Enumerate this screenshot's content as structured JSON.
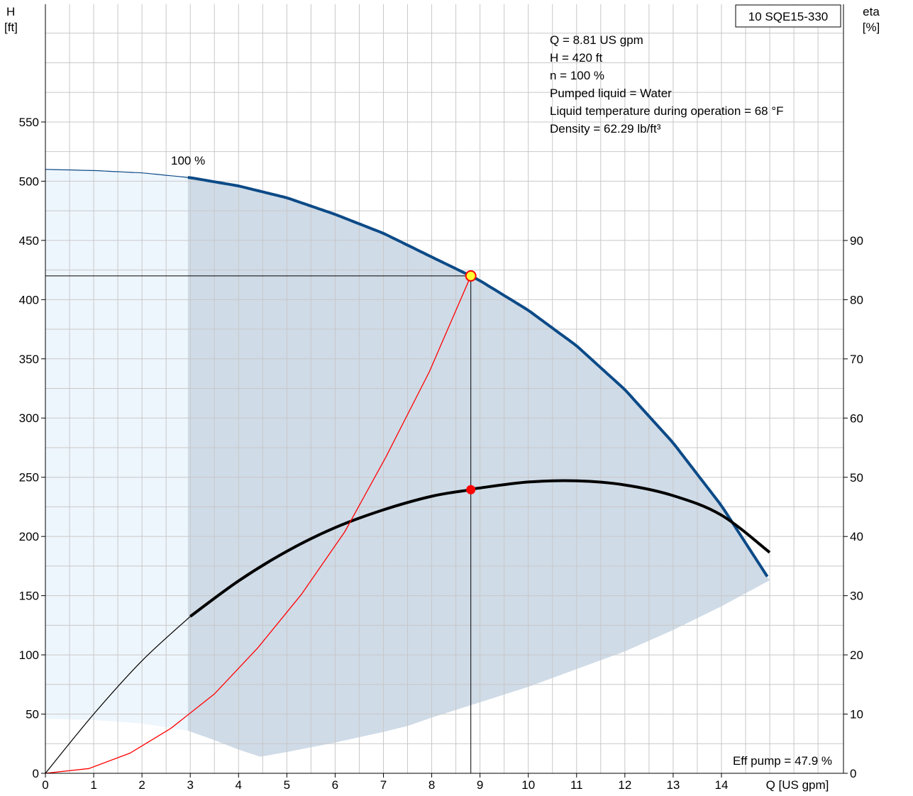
{
  "chart_data": {
    "type": "line",
    "title": "10 SQE15-330",
    "xlabel": "Q [US gpm]",
    "ylabel_left": [
      "H",
      "[ft]"
    ],
    "ylabel_right": [
      "eta",
      "[%]"
    ],
    "xlim": [
      0,
      16
    ],
    "ylim_left": [
      0,
      640
    ],
    "ylim_right": [
      0,
      92
    ],
    "x_ticks": [
      0,
      1,
      2,
      3,
      4,
      5,
      6,
      7,
      8,
      9,
      10,
      11,
      12,
      13,
      14
    ],
    "y_ticks_left": [
      0,
      50,
      100,
      150,
      200,
      250,
      300,
      350,
      400,
      450,
      500,
      550
    ],
    "y_ticks_right": [
      0,
      10,
      20,
      30,
      40,
      50,
      60,
      70,
      80,
      90
    ],
    "grid": true,
    "info_lines": [
      "Q = 8.81 US gpm",
      "H = 420 ft",
      "n = 100 %",
      "Pumped liquid = Water",
      "Liquid temperature during operation = 68 °F",
      "Density = 62.29 lb/ft³"
    ],
    "curve_label": "100 %",
    "efficiency_label": "Eff pump = 47.9 %",
    "operating_point": {
      "Q": 8.81,
      "H": 420,
      "eta": 47.9
    },
    "series": [
      {
        "name": "H",
        "axis": "left",
        "x": [
          0,
          1,
          2,
          3,
          4,
          5,
          6,
          7,
          8,
          8.81,
          9,
          10,
          11,
          12,
          13,
          14,
          15
        ],
        "y": [
          510,
          509,
          507,
          503,
          496,
          486,
          472,
          456,
          436,
          420,
          416,
          391,
          361,
          324,
          279,
          226,
          163
        ]
      },
      {
        "name": "eta",
        "axis": "right",
        "x": [
          0,
          1,
          2,
          3,
          4,
          5,
          6,
          7,
          8,
          8.81,
          9,
          10,
          11,
          12,
          13,
          14,
          15
        ],
        "y": [
          0,
          10,
          19,
          26.5,
          32.5,
          37.5,
          41.5,
          44.5,
          46.8,
          47.9,
          48.2,
          49.2,
          49.4,
          48.7,
          46.9,
          43.6,
          37.3
        ]
      },
      {
        "name": "system",
        "axis": "left",
        "x": [
          0,
          0.9,
          1.75,
          2.6,
          3.5,
          4.4,
          5.3,
          6.2,
          7.05,
          7.95,
          8.81
        ],
        "y": [
          0,
          4,
          17,
          38,
          67,
          106,
          151,
          204,
          267,
          339,
          420
        ]
      }
    ],
    "operating_range": {
      "light": {
        "top": {
          "x": [
            0,
            1,
            2,
            2.95
          ],
          "y": [
            510,
            509,
            507,
            503
          ]
        },
        "bottom": {
          "x": [
            0,
            1,
            2,
            2.95
          ],
          "y": [
            46,
            45,
            42,
            36
          ]
        }
      },
      "dark": {
        "x_start": 2.95,
        "bottom": {
          "x": [
            2.95,
            3.5,
            4,
            4.45,
            5,
            6,
            7,
            7.5,
            8,
            9,
            10,
            11,
            12,
            13,
            14,
            15
          ],
          "y": [
            36,
            28,
            20,
            14,
            18,
            26,
            35,
            40,
            47,
            60,
            73,
            88,
            103,
            121,
            141,
            163
          ]
        }
      }
    },
    "colors": {
      "head_curve": "#0c4a87",
      "efficiency_curve": "#000000",
      "system_curve": "#ff0000",
      "range_dark": "#cfdbe7",
      "range_light": "#eef6fd",
      "operating_marker_fill": "#ffff33",
      "efficiency_marker": "#ff0000"
    }
  }
}
